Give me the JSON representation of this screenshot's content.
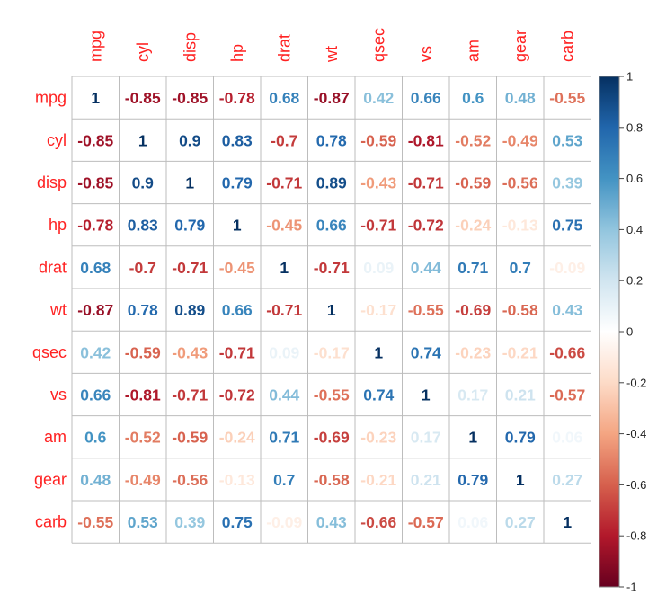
{
  "chart_data": {
    "type": "heatmap",
    "variables": [
      "mpg",
      "cyl",
      "disp",
      "hp",
      "drat",
      "wt",
      "qsec",
      "vs",
      "am",
      "gear",
      "carb"
    ],
    "matrix": [
      [
        "1",
        "-0.85",
        "-0.85",
        "-0.78",
        "0.68",
        "-0.87",
        "0.42",
        "0.66",
        "0.6",
        "0.48",
        "-0.55"
      ],
      [
        "-0.85",
        "1",
        "0.9",
        "0.83",
        "-0.7",
        "0.78",
        "-0.59",
        "-0.81",
        "-0.52",
        "-0.49",
        "0.53"
      ],
      [
        "-0.85",
        "0.9",
        "1",
        "0.79",
        "-0.71",
        "0.89",
        "-0.43",
        "-0.71",
        "-0.59",
        "-0.56",
        "0.39"
      ],
      [
        "-0.78",
        "0.83",
        "0.79",
        "1",
        "-0.45",
        "0.66",
        "-0.71",
        "-0.72",
        "-0.24",
        "-0.13",
        "0.75"
      ],
      [
        "0.68",
        "-0.7",
        "-0.71",
        "-0.45",
        "1",
        "-0.71",
        "0.09",
        "0.44",
        "0.71",
        "0.7",
        "-0.09"
      ],
      [
        "-0.87",
        "0.78",
        "0.89",
        "0.66",
        "-0.71",
        "1",
        "-0.17",
        "-0.55",
        "-0.69",
        "-0.58",
        "0.43"
      ],
      [
        "0.42",
        "-0.59",
        "-0.43",
        "-0.71",
        "0.09",
        "-0.17",
        "1",
        "0.74",
        "-0.23",
        "-0.21",
        "-0.66"
      ],
      [
        "0.66",
        "-0.81",
        "-0.71",
        "-0.72",
        "0.44",
        "-0.55",
        "0.74",
        "1",
        "0.17",
        "0.21",
        "-0.57"
      ],
      [
        "0.6",
        "-0.52",
        "-0.59",
        "-0.24",
        "0.71",
        "-0.69",
        "-0.23",
        "0.17",
        "1",
        "0.79",
        "0.06"
      ],
      [
        "0.48",
        "-0.49",
        "-0.56",
        "-0.13",
        "0.7",
        "-0.58",
        "-0.21",
        "0.21",
        "0.79",
        "1",
        "0.27"
      ],
      [
        "-0.55",
        "0.53",
        "0.39",
        "0.75",
        "-0.09",
        "0.43",
        "-0.66",
        "-0.57",
        "0.06",
        "0.27",
        "1"
      ]
    ],
    "colorbar": {
      "range": [
        -1,
        1
      ],
      "ticks": [
        "1",
        "0.8",
        "0.6",
        "0.4",
        "0.2",
        "0",
        "-0.2",
        "-0.4",
        "-0.6",
        "-0.8",
        "-1"
      ],
      "palette": [
        "#67001f",
        "#b2182b",
        "#d6604d",
        "#f4a582",
        "#fddbc7",
        "#ffffff",
        "#d1e5f0",
        "#92c5de",
        "#4393c3",
        "#2166ac",
        "#053061"
      ]
    },
    "label_color": "#ff2222",
    "grid": true
  }
}
